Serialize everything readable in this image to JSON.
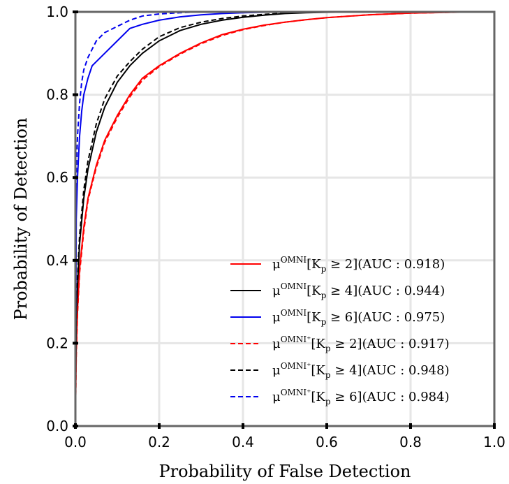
{
  "chart_data": {
    "type": "line",
    "title": "",
    "xlabel": "Probability of False Detection",
    "ylabel": "Probability of Detection",
    "xlim": [
      0.0,
      1.0
    ],
    "ylim": [
      0.0,
      1.0
    ],
    "grid": true,
    "legend_position": "bottom-right",
    "x_ticks": [
      "0.0",
      "0.2",
      "0.4",
      "0.6",
      "0.8",
      "1.0"
    ],
    "y_ticks": [
      "0.0",
      "0.2",
      "0.4",
      "0.6",
      "0.8",
      "1.0"
    ],
    "series": [
      {
        "name_base": "μ",
        "name_sup": "OMNI",
        "name_open": "[K",
        "name_sub": "p",
        "name_cond": " ≥ 2](AUC : 0.918)",
        "color": "#ff0000",
        "dash": "solid",
        "x": [
          0.0,
          0.002,
          0.005,
          0.01,
          0.02,
          0.03,
          0.05,
          0.07,
          0.1,
          0.13,
          0.16,
          0.2,
          0.25,
          0.3,
          0.35,
          0.4,
          0.45,
          0.5,
          0.55,
          0.6,
          0.7,
          0.8,
          0.9,
          1.0
        ],
        "y": [
          0.0,
          0.18,
          0.28,
          0.38,
          0.48,
          0.55,
          0.63,
          0.69,
          0.75,
          0.8,
          0.84,
          0.87,
          0.9,
          0.925,
          0.945,
          0.958,
          0.968,
          0.975,
          0.981,
          0.986,
          0.993,
          0.997,
          0.999,
          1.0
        ]
      },
      {
        "name_base": "μ",
        "name_sup": "OMNI",
        "name_open": "[K",
        "name_sub": "p",
        "name_cond": " ≥ 4](AUC : 0.944)",
        "color": "#000000",
        "dash": "solid",
        "x": [
          0.0,
          0.002,
          0.005,
          0.01,
          0.02,
          0.03,
          0.05,
          0.07,
          0.1,
          0.13,
          0.16,
          0.2,
          0.25,
          0.3,
          0.35,
          0.4,
          0.45,
          0.5,
          0.55,
          0.6,
          0.7,
          0.8,
          1.0
        ],
        "y": [
          0.0,
          0.25,
          0.34,
          0.44,
          0.55,
          0.62,
          0.71,
          0.77,
          0.83,
          0.87,
          0.9,
          0.93,
          0.955,
          0.97,
          0.98,
          0.987,
          0.992,
          0.996,
          0.998,
          0.999,
          1.0,
          1.0,
          1.0
        ]
      },
      {
        "name_base": "μ",
        "name_sup": "OMNI",
        "name_open": "[K",
        "name_sub": "p",
        "name_cond": " ≥ 6](AUC : 0.975)",
        "color": "#0000ee",
        "dash": "solid",
        "x": [
          0.0,
          0.002,
          0.005,
          0.01,
          0.015,
          0.02,
          0.03,
          0.04,
          0.05,
          0.07,
          0.1,
          0.13,
          0.16,
          0.2,
          0.25,
          0.3,
          0.35,
          0.4,
          0.5,
          0.6,
          1.0
        ],
        "y": [
          0.0,
          0.5,
          0.6,
          0.7,
          0.76,
          0.8,
          0.84,
          0.87,
          0.88,
          0.9,
          0.93,
          0.96,
          0.97,
          0.98,
          0.988,
          0.993,
          0.996,
          0.998,
          1.0,
          1.0,
          1.0
        ]
      },
      {
        "name_base": "μ",
        "name_sup": "OMNI⁺",
        "name_open": "[K",
        "name_sub": "p",
        "name_cond": " ≥ 2](AUC : 0.917)",
        "color": "#ff0000",
        "dash": "dashed",
        "x": [
          0.0,
          0.002,
          0.005,
          0.01,
          0.02,
          0.03,
          0.05,
          0.07,
          0.1,
          0.13,
          0.16,
          0.2,
          0.25,
          0.3,
          0.35,
          0.4,
          0.45,
          0.5,
          0.55,
          0.6,
          0.7,
          0.8,
          0.9,
          1.0
        ],
        "y": [
          0.0,
          0.17,
          0.27,
          0.37,
          0.47,
          0.545,
          0.625,
          0.685,
          0.745,
          0.795,
          0.835,
          0.868,
          0.898,
          0.923,
          0.943,
          0.957,
          0.967,
          0.975,
          0.981,
          0.986,
          0.993,
          0.997,
          0.999,
          1.0
        ]
      },
      {
        "name_base": "μ",
        "name_sup": "OMNI⁺",
        "name_open": "[K",
        "name_sub": "p",
        "name_cond": " ≥ 4](AUC : 0.948)",
        "color": "#000000",
        "dash": "dashed",
        "x": [
          0.0,
          0.002,
          0.005,
          0.01,
          0.02,
          0.03,
          0.05,
          0.07,
          0.1,
          0.13,
          0.16,
          0.2,
          0.25,
          0.3,
          0.35,
          0.4,
          0.45,
          0.5,
          0.55,
          0.6,
          0.7,
          1.0
        ],
        "y": [
          0.0,
          0.27,
          0.36,
          0.46,
          0.57,
          0.64,
          0.73,
          0.79,
          0.845,
          0.88,
          0.91,
          0.94,
          0.962,
          0.975,
          0.984,
          0.99,
          0.994,
          0.997,
          0.999,
          1.0,
          1.0,
          1.0
        ]
      },
      {
        "name_base": "μ",
        "name_sup": "OMNI⁺",
        "name_open": "[K",
        "name_sub": "p",
        "name_cond": " ≥ 6](AUC : 0.984)",
        "color": "#0000ee",
        "dash": "dashed",
        "x": [
          0.0,
          0.002,
          0.005,
          0.01,
          0.015,
          0.02,
          0.03,
          0.04,
          0.05,
          0.07,
          0.1,
          0.13,
          0.16,
          0.2,
          0.25,
          0.3,
          0.4,
          1.0
        ],
        "y": [
          0.0,
          0.6,
          0.7,
          0.78,
          0.83,
          0.86,
          0.89,
          0.91,
          0.93,
          0.95,
          0.965,
          0.98,
          0.99,
          0.995,
          0.998,
          1.0,
          1.0,
          1.0
        ]
      }
    ]
  }
}
